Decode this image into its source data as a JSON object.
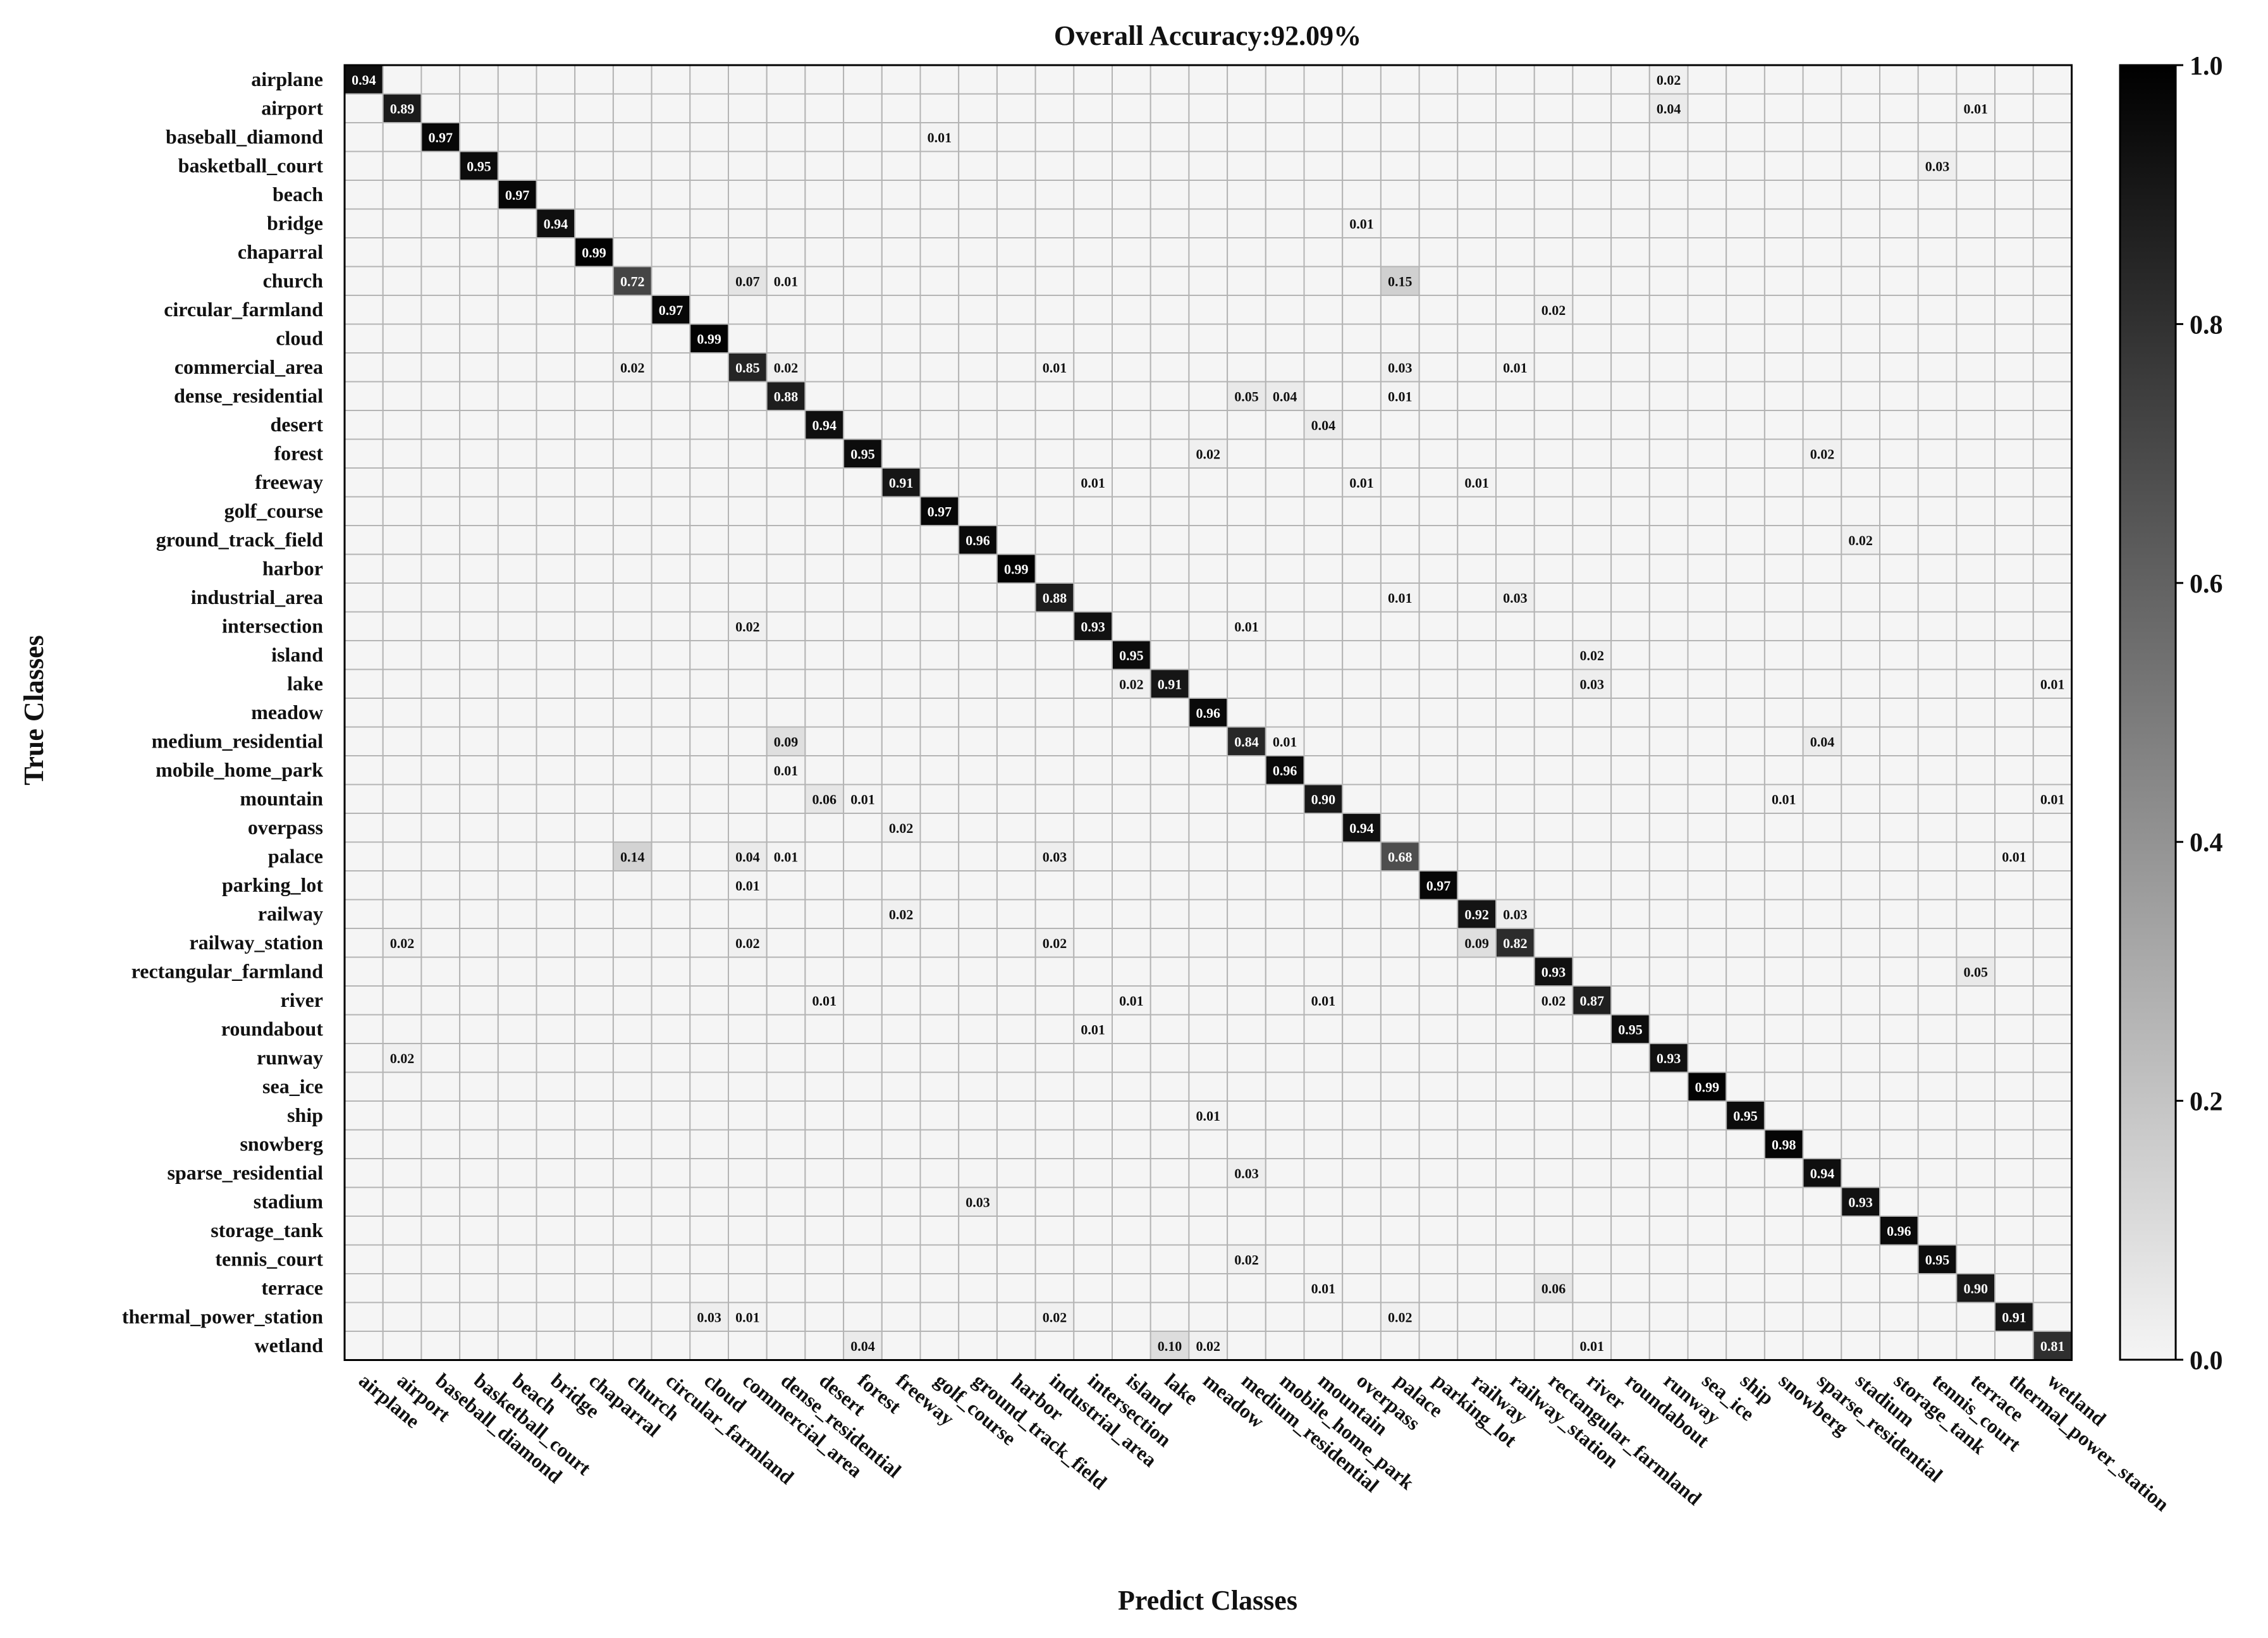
{
  "chart_data": {
    "type": "heatmap",
    "title": "Overall Accuracy:92.09%",
    "xlabel": "Predict Classes",
    "ylabel": "True Classes",
    "classes": [
      "airplane",
      "airport",
      "baseball_diamond",
      "basketball_court",
      "beach",
      "bridge",
      "chaparral",
      "church",
      "circular_farmland",
      "cloud",
      "commercial_area",
      "dense_residential",
      "desert",
      "forest",
      "freeway",
      "golf_course",
      "ground_track_field",
      "harbor",
      "industrial_area",
      "intersection",
      "island",
      "lake",
      "meadow",
      "medium_residential",
      "mobile_home_park",
      "mountain",
      "overpass",
      "palace",
      "parking_lot",
      "railway",
      "railway_station",
      "rectangular_farmland",
      "river",
      "roundabout",
      "runway",
      "sea_ice",
      "ship",
      "snowberg",
      "sparse_residential",
      "stadium",
      "storage_tank",
      "tennis_court",
      "terrace",
      "thermal_power_station",
      "wetland"
    ],
    "diagonal": [
      0.94,
      0.89,
      0.97,
      0.95,
      0.97,
      0.94,
      0.99,
      0.72,
      0.97,
      0.99,
      0.85,
      0.88,
      0.94,
      0.95,
      0.91,
      0.97,
      0.96,
      0.99,
      0.88,
      0.93,
      0.95,
      0.91,
      0.96,
      0.84,
      0.96,
      0.9,
      0.94,
      0.68,
      0.97,
      0.92,
      0.82,
      0.93,
      0.87,
      0.95,
      0.93,
      0.99,
      0.95,
      0.98,
      0.94,
      0.93,
      0.96,
      0.95,
      0.9,
      0.91,
      0.81
    ],
    "off_diagonal": [
      {
        "row": 0,
        "col": 34,
        "value": 0.02
      },
      {
        "row": 1,
        "col": 34,
        "value": 0.04
      },
      {
        "row": 1,
        "col": 42,
        "value": 0.01
      },
      {
        "row": 2,
        "col": 15,
        "value": 0.01
      },
      {
        "row": 3,
        "col": 41,
        "value": 0.03
      },
      {
        "row": 5,
        "col": 26,
        "value": 0.01
      },
      {
        "row": 7,
        "col": 10,
        "value": 0.07
      },
      {
        "row": 7,
        "col": 11,
        "value": 0.01
      },
      {
        "row": 7,
        "col": 27,
        "value": 0.15
      },
      {
        "row": 8,
        "col": 31,
        "value": 0.02
      },
      {
        "row": 10,
        "col": 7,
        "value": 0.02
      },
      {
        "row": 10,
        "col": 11,
        "value": 0.02
      },
      {
        "row": 10,
        "col": 18,
        "value": 0.01
      },
      {
        "row": 10,
        "col": 27,
        "value": 0.03
      },
      {
        "row": 10,
        "col": 30,
        "value": 0.01
      },
      {
        "row": 11,
        "col": 23,
        "value": 0.05
      },
      {
        "row": 11,
        "col": 24,
        "value": 0.04
      },
      {
        "row": 11,
        "col": 27,
        "value": 0.01
      },
      {
        "row": 12,
        "col": 25,
        "value": 0.04
      },
      {
        "row": 13,
        "col": 22,
        "value": 0.02
      },
      {
        "row": 13,
        "col": 38,
        "value": 0.02
      },
      {
        "row": 14,
        "col": 19,
        "value": 0.01
      },
      {
        "row": 14,
        "col": 26,
        "value": 0.01
      },
      {
        "row": 14,
        "col": 29,
        "value": 0.01
      },
      {
        "row": 16,
        "col": 39,
        "value": 0.02
      },
      {
        "row": 18,
        "col": 27,
        "value": 0.01
      },
      {
        "row": 18,
        "col": 30,
        "value": 0.03
      },
      {
        "row": 19,
        "col": 10,
        "value": 0.02
      },
      {
        "row": 19,
        "col": 23,
        "value": 0.01
      },
      {
        "row": 20,
        "col": 32,
        "value": 0.02
      },
      {
        "row": 21,
        "col": 20,
        "value": 0.02
      },
      {
        "row": 21,
        "col": 32,
        "value": 0.03
      },
      {
        "row": 21,
        "col": 44,
        "value": 0.01
      },
      {
        "row": 23,
        "col": 11,
        "value": 0.09
      },
      {
        "row": 23,
        "col": 24,
        "value": 0.01
      },
      {
        "row": 23,
        "col": 38,
        "value": 0.04
      },
      {
        "row": 24,
        "col": 11,
        "value": 0.01
      },
      {
        "row": 25,
        "col": 12,
        "value": 0.06
      },
      {
        "row": 25,
        "col": 13,
        "value": 0.01
      },
      {
        "row": 25,
        "col": 37,
        "value": 0.01
      },
      {
        "row": 25,
        "col": 44,
        "value": 0.01
      },
      {
        "row": 26,
        "col": 14,
        "value": 0.02
      },
      {
        "row": 27,
        "col": 7,
        "value": 0.14
      },
      {
        "row": 27,
        "col": 10,
        "value": 0.04
      },
      {
        "row": 27,
        "col": 11,
        "value": 0.01
      },
      {
        "row": 27,
        "col": 18,
        "value": 0.03
      },
      {
        "row": 27,
        "col": 43,
        "value": 0.01
      },
      {
        "row": 28,
        "col": 10,
        "value": 0.01
      },
      {
        "row": 29,
        "col": 14,
        "value": 0.02
      },
      {
        "row": 29,
        "col": 30,
        "value": 0.03
      },
      {
        "row": 30,
        "col": 1,
        "value": 0.02
      },
      {
        "row": 30,
        "col": 10,
        "value": 0.02
      },
      {
        "row": 30,
        "col": 18,
        "value": 0.02
      },
      {
        "row": 30,
        "col": 29,
        "value": 0.09
      },
      {
        "row": 31,
        "col": 42,
        "value": 0.05
      },
      {
        "row": 32,
        "col": 12,
        "value": 0.01
      },
      {
        "row": 32,
        "col": 20,
        "value": 0.01
      },
      {
        "row": 32,
        "col": 25,
        "value": 0.01
      },
      {
        "row": 32,
        "col": 31,
        "value": 0.02
      },
      {
        "row": 33,
        "col": 19,
        "value": 0.01
      },
      {
        "row": 34,
        "col": 1,
        "value": 0.02
      },
      {
        "row": 36,
        "col": 22,
        "value": 0.01
      },
      {
        "row": 38,
        "col": 23,
        "value": 0.03
      },
      {
        "row": 39,
        "col": 16,
        "value": 0.03
      },
      {
        "row": 41,
        "col": 23,
        "value": 0.02
      },
      {
        "row": 42,
        "col": 25,
        "value": 0.01
      },
      {
        "row": 42,
        "col": 31,
        "value": 0.06
      },
      {
        "row": 43,
        "col": 9,
        "value": 0.03
      },
      {
        "row": 43,
        "col": 10,
        "value": 0.01
      },
      {
        "row": 43,
        "col": 18,
        "value": 0.02
      },
      {
        "row": 43,
        "col": 27,
        "value": 0.02
      },
      {
        "row": 44,
        "col": 13,
        "value": 0.04
      },
      {
        "row": 44,
        "col": 21,
        "value": 0.1
      },
      {
        "row": 44,
        "col": 22,
        "value": 0.02
      },
      {
        "row": 44,
        "col": 32,
        "value": 0.01
      }
    ],
    "value_format": "two decimals",
    "colorbar": {
      "range": [
        0.0,
        1.0
      ],
      "ticks": [
        "0.0",
        "0.2",
        "0.4",
        "0.6",
        "0.8",
        "1.0"
      ],
      "colormap": [
        "#f5f5f5",
        "#000000"
      ]
    },
    "grid": true,
    "grid_color": "#b4b4b4",
    "border_color": "#000000"
  }
}
